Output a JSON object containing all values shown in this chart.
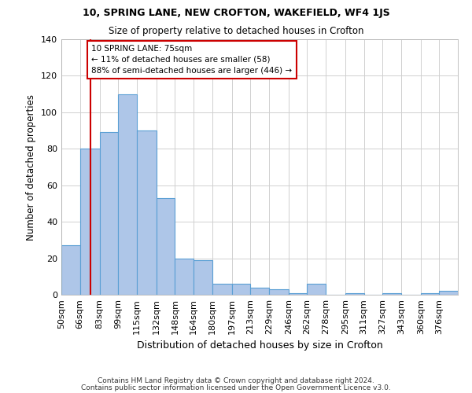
{
  "title1": "10, SPRING LANE, NEW CROFTON, WAKEFIELD, WF4 1JS",
  "title2": "Size of property relative to detached houses in Crofton",
  "xlabel": "Distribution of detached houses by size in Crofton",
  "ylabel": "Number of detached properties",
  "footer1": "Contains HM Land Registry data © Crown copyright and database right 2024.",
  "footer2": "Contains public sector information licensed under the Open Government Licence v3.0.",
  "bins": [
    50,
    66,
    83,
    99,
    115,
    132,
    148,
    164,
    180,
    197,
    213,
    229,
    246,
    262,
    278,
    295,
    311,
    327,
    343,
    360,
    376
  ],
  "bar_labels": [
    "50sqm",
    "66sqm",
    "83sqm",
    "99sqm",
    "115sqm",
    "132sqm",
    "148sqm",
    "164sqm",
    "180sqm",
    "197sqm",
    "213sqm",
    "229sqm",
    "246sqm",
    "262sqm",
    "278sqm",
    "295sqm",
    "311sqm",
    "327sqm",
    "343sqm",
    "360sqm",
    "376sqm"
  ],
  "heights": [
    27,
    80,
    89,
    110,
    90,
    53,
    20,
    19,
    6,
    6,
    4,
    3,
    1,
    6,
    0,
    1,
    0,
    1,
    0,
    1,
    2
  ],
  "bar_color": "#aec6e8",
  "bar_edge_color": "#5a9fd4",
  "property_line_x": 75,
  "property_line_color": "#cc0000",
  "annotation_text": "10 SPRING LANE: 75sqm\n← 11% of detached houses are smaller (58)\n88% of semi-detached houses are larger (446) →",
  "annotation_box_color": "#cc0000",
  "annotation_text_color": "#000000",
  "ylim": [
    0,
    140
  ],
  "yticks": [
    0,
    20,
    40,
    60,
    80,
    100,
    120,
    140
  ],
  "background_color": "#ffffff",
  "grid_color": "#d0d0d0"
}
